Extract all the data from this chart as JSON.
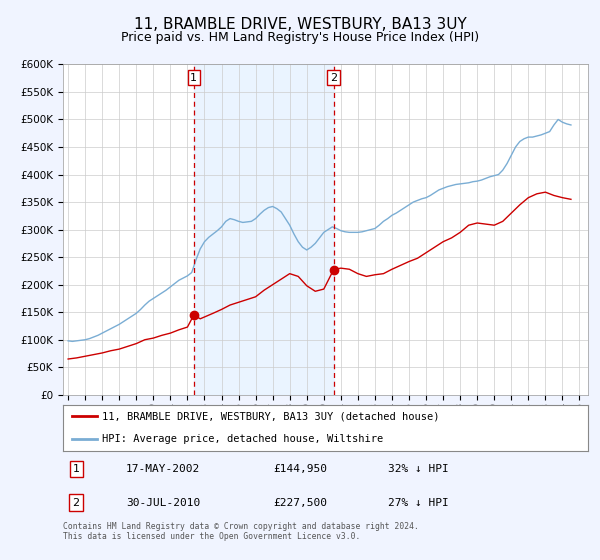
{
  "title": "11, BRAMBLE DRIVE, WESTBURY, BA13 3UY",
  "subtitle": "Price paid vs. HM Land Registry's House Price Index (HPI)",
  "title_fontsize": 11,
  "subtitle_fontsize": 9,
  "ylim": [
    0,
    600000
  ],
  "yticks": [
    0,
    50000,
    100000,
    150000,
    200000,
    250000,
    300000,
    350000,
    400000,
    450000,
    500000,
    550000,
    600000
  ],
  "xlim_start": 1994.7,
  "xlim_end": 2025.5,
  "xticks": [
    1995,
    1996,
    1997,
    1998,
    1999,
    2000,
    2001,
    2002,
    2003,
    2004,
    2005,
    2006,
    2007,
    2008,
    2009,
    2010,
    2011,
    2012,
    2013,
    2014,
    2015,
    2016,
    2017,
    2018,
    2019,
    2020,
    2021,
    2022,
    2023,
    2024,
    2025
  ],
  "grid_color": "#cccccc",
  "bg_color": "#f0f4ff",
  "plot_bg_color": "#ffffff",
  "red_color": "#cc0000",
  "blue_color": "#7aadd4",
  "sale1_x": 2002.375,
  "sale1_y": 144950,
  "sale2_x": 2010.58,
  "sale2_y": 227500,
  "vline_color": "#cc0000",
  "shade_color": "#ddeeff",
  "legend_label1": "11, BRAMBLE DRIVE, WESTBURY, BA13 3UY (detached house)",
  "legend_label2": "HPI: Average price, detached house, Wiltshire",
  "table_row1_num": "1",
  "table_row1_date": "17-MAY-2002",
  "table_row1_price": "£144,950",
  "table_row1_hpi": "32% ↓ HPI",
  "table_row2_num": "2",
  "table_row2_date": "30-JUL-2010",
  "table_row2_price": "£227,500",
  "table_row2_hpi": "27% ↓ HPI",
  "footer": "Contains HM Land Registry data © Crown copyright and database right 2024.\nThis data is licensed under the Open Government Licence v3.0.",
  "hpi_data_x": [
    1995.0,
    1995.25,
    1995.5,
    1995.75,
    1996.0,
    1996.25,
    1996.5,
    1996.75,
    1997.0,
    1997.25,
    1997.5,
    1997.75,
    1998.0,
    1998.25,
    1998.5,
    1998.75,
    1999.0,
    1999.25,
    1999.5,
    1999.75,
    2000.0,
    2000.25,
    2000.5,
    2000.75,
    2001.0,
    2001.25,
    2001.5,
    2001.75,
    2002.0,
    2002.25,
    2002.5,
    2002.75,
    2003.0,
    2003.25,
    2003.5,
    2003.75,
    2004.0,
    2004.25,
    2004.5,
    2004.75,
    2005.0,
    2005.25,
    2005.5,
    2005.75,
    2006.0,
    2006.25,
    2006.5,
    2006.75,
    2007.0,
    2007.25,
    2007.5,
    2007.75,
    2008.0,
    2008.25,
    2008.5,
    2008.75,
    2009.0,
    2009.25,
    2009.5,
    2009.75,
    2010.0,
    2010.25,
    2010.5,
    2010.75,
    2011.0,
    2011.25,
    2011.5,
    2011.75,
    2012.0,
    2012.25,
    2012.5,
    2012.75,
    2013.0,
    2013.25,
    2013.5,
    2013.75,
    2014.0,
    2014.25,
    2014.5,
    2014.75,
    2015.0,
    2015.25,
    2015.5,
    2015.75,
    2016.0,
    2016.25,
    2016.5,
    2016.75,
    2017.0,
    2017.25,
    2017.5,
    2017.75,
    2018.0,
    2018.25,
    2018.5,
    2018.75,
    2019.0,
    2019.25,
    2019.5,
    2019.75,
    2020.0,
    2020.25,
    2020.5,
    2020.75,
    2021.0,
    2021.25,
    2021.5,
    2021.75,
    2022.0,
    2022.25,
    2022.5,
    2022.75,
    2023.0,
    2023.25,
    2023.5,
    2023.75,
    2024.0,
    2024.25,
    2024.5
  ],
  "hpi_data_y": [
    98000,
    97000,
    98000,
    99000,
    100000,
    102000,
    105000,
    108000,
    112000,
    116000,
    120000,
    124000,
    128000,
    133000,
    138000,
    143000,
    148000,
    155000,
    163000,
    170000,
    175000,
    180000,
    185000,
    190000,
    196000,
    202000,
    208000,
    212000,
    216000,
    222000,
    245000,
    265000,
    278000,
    286000,
    292000,
    298000,
    305000,
    315000,
    320000,
    318000,
    315000,
    313000,
    314000,
    315000,
    320000,
    328000,
    335000,
    340000,
    342000,
    338000,
    332000,
    320000,
    308000,
    292000,
    278000,
    268000,
    263000,
    268000,
    275000,
    285000,
    295000,
    300000,
    305000,
    302000,
    298000,
    296000,
    295000,
    295000,
    295000,
    296000,
    298000,
    300000,
    302000,
    308000,
    315000,
    320000,
    326000,
    330000,
    335000,
    340000,
    345000,
    350000,
    353000,
    356000,
    358000,
    362000,
    367000,
    372000,
    375000,
    378000,
    380000,
    382000,
    383000,
    384000,
    385000,
    387000,
    388000,
    390000,
    393000,
    396000,
    398000,
    400000,
    408000,
    420000,
    435000,
    450000,
    460000,
    465000,
    468000,
    468000,
    470000,
    472000,
    475000,
    478000,
    490000,
    500000,
    495000,
    492000,
    490000
  ],
  "red_data_x": [
    1995.0,
    1995.5,
    1996.0,
    1996.5,
    1997.0,
    1997.5,
    1998.0,
    1998.5,
    1999.0,
    1999.5,
    2000.0,
    2000.5,
    2001.0,
    2001.5,
    2002.0,
    2002.375,
    2002.75,
    2003.5,
    2004.0,
    2004.5,
    2005.0,
    2005.5,
    2006.0,
    2006.5,
    2007.0,
    2007.5,
    2008.0,
    2008.5,
    2009.0,
    2009.5,
    2010.0,
    2010.58,
    2011.0,
    2011.5,
    2012.0,
    2012.5,
    2013.0,
    2013.5,
    2014.0,
    2014.5,
    2015.0,
    2015.5,
    2016.0,
    2016.5,
    2017.0,
    2017.5,
    2018.0,
    2018.5,
    2019.0,
    2019.5,
    2020.0,
    2020.5,
    2021.0,
    2021.5,
    2022.0,
    2022.5,
    2023.0,
    2023.5,
    2024.0,
    2024.5
  ],
  "red_data_y": [
    65000,
    67000,
    70000,
    73000,
    76000,
    80000,
    83000,
    88000,
    93000,
    100000,
    103000,
    108000,
    112000,
    118000,
    123000,
    144950,
    138000,
    148000,
    155000,
    163000,
    168000,
    173000,
    178000,
    190000,
    200000,
    210000,
    220000,
    215000,
    198000,
    188000,
    192000,
    227500,
    230000,
    228000,
    220000,
    215000,
    218000,
    220000,
    228000,
    235000,
    242000,
    248000,
    258000,
    268000,
    278000,
    285000,
    295000,
    308000,
    312000,
    310000,
    308000,
    315000,
    330000,
    345000,
    358000,
    365000,
    368000,
    362000,
    358000,
    355000
  ]
}
